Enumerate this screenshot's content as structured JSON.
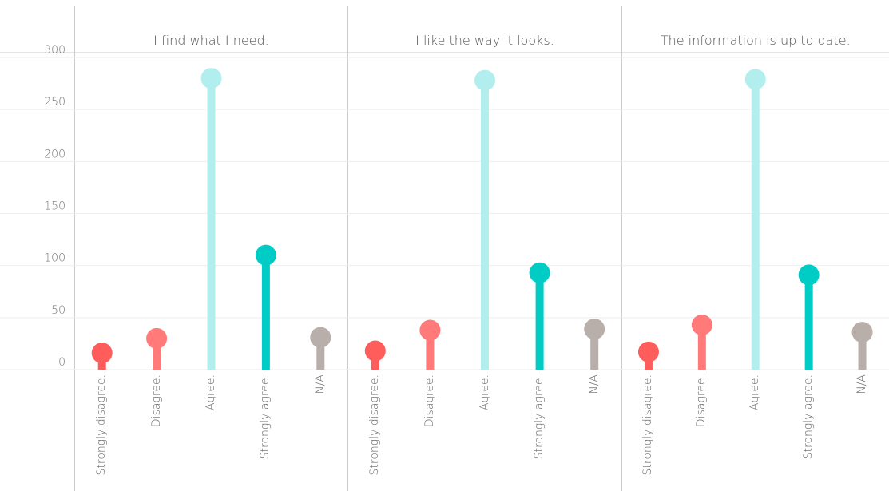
{
  "chart_data": [
    {
      "type": "lollipop",
      "title": "I find what I need.",
      "categories": [
        "Strongly disagree.",
        "Disagree.",
        "Agree.",
        "Strongly agree.",
        "N/A"
      ],
      "values": [
        16,
        30,
        280,
        110,
        31
      ],
      "colors": [
        "#ff5c5c",
        "#ff7a78",
        "#b3eeee",
        "#00ccc6",
        "#b8aeaa"
      ],
      "ylim": [
        0,
        300
      ],
      "yticks": [
        0,
        50,
        100,
        150,
        200,
        250,
        300
      ],
      "grid": true
    },
    {
      "type": "lollipop",
      "title": "I like the way it looks.",
      "categories": [
        "Strongly disagree.",
        "Disagree.",
        "Agree.",
        "Strongly agree.",
        "N/A"
      ],
      "values": [
        18,
        38,
        278,
        93,
        39
      ],
      "colors": [
        "#ff5c5c",
        "#ff7a78",
        "#b3eeee",
        "#00ccc6",
        "#b8aeaa"
      ],
      "ylim": [
        0,
        300
      ],
      "yticks": [
        0,
        50,
        100,
        150,
        200,
        250,
        300
      ],
      "grid": true
    },
    {
      "type": "lollipop",
      "title": "The information is up to date.",
      "categories": [
        "Strongly disagree.",
        "Disagree.",
        "Agree.",
        "Strongly agree.",
        "N/A"
      ],
      "values": [
        17,
        43,
        279,
        91,
        36
      ],
      "colors": [
        "#ff5c5c",
        "#ff7a78",
        "#b3eeee",
        "#00ccc6",
        "#b8aeaa"
      ],
      "ylim": [
        0,
        300
      ],
      "yticks": [
        0,
        50,
        100,
        150,
        200,
        250,
        300
      ],
      "grid": true
    }
  ]
}
